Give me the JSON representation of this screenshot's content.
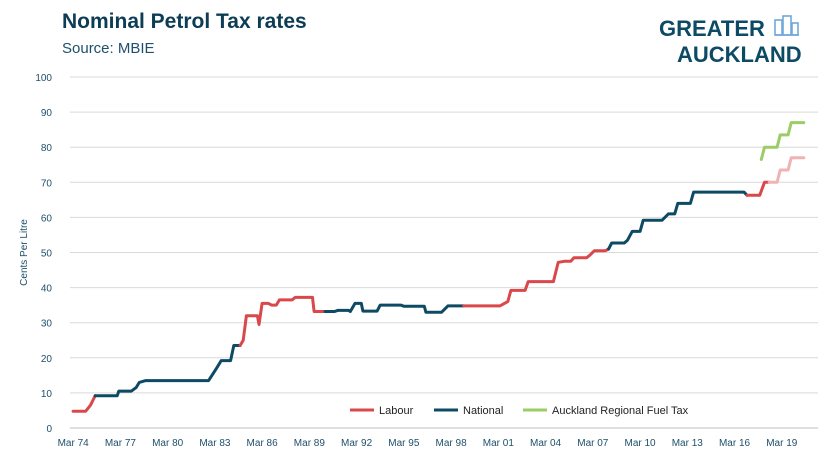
{
  "title": "Nominal Petrol Tax rates",
  "subtitle": "Source: MBIE",
  "logo_text": [
    "GREATER",
    "AUCKLAND"
  ],
  "colors": {
    "title": "#0d3c55",
    "labour": "#d9484a",
    "national": "#0d4a63",
    "labour_faded": "#f0b3b4",
    "rft": "#9ccc65",
    "grid": "#d9d9d9",
    "axis_text": "#1e4f6b",
    "logo": "#0d4a63"
  },
  "chart_data": {
    "type": "line",
    "ylabel": "Cents Per Litre",
    "xlabel": "",
    "ylim": [
      0,
      100
    ],
    "yticks": [
      0,
      10,
      20,
      30,
      40,
      50,
      60,
      70,
      80,
      90,
      100
    ],
    "xlim": [
      1974.0,
      2021.5
    ],
    "xticks": [
      {
        "label": "Mar 74",
        "x": 1974.2
      },
      {
        "label": "Mar 77",
        "x": 1977.2
      },
      {
        "label": "Mar 80",
        "x": 1980.2
      },
      {
        "label": "Mar 83",
        "x": 1983.2
      },
      {
        "label": "Mar 86",
        "x": 1986.2
      },
      {
        "label": "Mar 89",
        "x": 1989.2
      },
      {
        "label": "Mar 92",
        "x": 1992.2
      },
      {
        "label": "Mar 95",
        "x": 1995.2
      },
      {
        "label": "Mar 98",
        "x": 1998.2
      },
      {
        "label": "Mar 01",
        "x": 2001.2
      },
      {
        "label": "Mar 04",
        "x": 2004.2
      },
      {
        "label": "Mar 07",
        "x": 2007.2
      },
      {
        "label": "Mar 10",
        "x": 2010.2
      },
      {
        "label": "Mar 13",
        "x": 2013.2
      },
      {
        "label": "Mar 16",
        "x": 2016.2
      },
      {
        "label": "Mar 19",
        "x": 2019.2
      }
    ],
    "legend_position": "bottom",
    "legend": [
      {
        "name": "Labour",
        "color_key": "labour"
      },
      {
        "name": "National",
        "color_key": "national"
      },
      {
        "name": "Auckland Regional Fuel Tax",
        "color_key": "rft"
      }
    ],
    "series": [
      {
        "name": "Labour",
        "color_key": "labour",
        "points": [
          [
            1974.2,
            4.8
          ],
          [
            1975.0,
            4.8
          ],
          [
            1975.3,
            6.5
          ],
          [
            1975.6,
            9.2
          ]
        ]
      },
      {
        "name": "National",
        "color_key": "national",
        "points": [
          [
            1975.6,
            9.2
          ],
          [
            1977.0,
            9.2
          ],
          [
            1977.1,
            10.5
          ],
          [
            1977.9,
            10.5
          ],
          [
            1978.2,
            11.5
          ],
          [
            1978.4,
            13.0
          ],
          [
            1978.8,
            13.5
          ],
          [
            1980.0,
            13.5
          ],
          [
            1982.0,
            13.5
          ],
          [
            1982.8,
            13.5
          ],
          [
            1983.3,
            17.0
          ],
          [
            1983.6,
            19.2
          ],
          [
            1984.2,
            19.2
          ],
          [
            1984.4,
            23.5
          ],
          [
            1984.8,
            23.5
          ]
        ]
      },
      {
        "name": "Labour",
        "color_key": "labour",
        "points": [
          [
            1984.8,
            23.5
          ],
          [
            1985.0,
            25.0
          ],
          [
            1985.2,
            32.0
          ],
          [
            1985.9,
            32.0
          ],
          [
            1986.0,
            29.5
          ],
          [
            1986.2,
            35.5
          ],
          [
            1986.6,
            35.5
          ],
          [
            1986.8,
            35.0
          ],
          [
            1987.1,
            35.0
          ],
          [
            1987.3,
            36.5
          ],
          [
            1988.1,
            36.5
          ],
          [
            1988.3,
            37.2
          ],
          [
            1989.4,
            37.2
          ],
          [
            1989.5,
            33.2
          ],
          [
            1990.2,
            33.2
          ]
        ]
      },
      {
        "name": "National",
        "color_key": "national",
        "points": [
          [
            1990.2,
            33.2
          ],
          [
            1990.8,
            33.2
          ],
          [
            1991.0,
            33.5
          ],
          [
            1991.7,
            33.5
          ],
          [
            1991.8,
            33.2
          ],
          [
            1992.1,
            35.5
          ],
          [
            1992.5,
            35.5
          ],
          [
            1992.6,
            33.3
          ],
          [
            1993.5,
            33.3
          ],
          [
            1993.7,
            35.0
          ],
          [
            1995.0,
            35.0
          ],
          [
            1995.2,
            34.7
          ],
          [
            1996.5,
            34.7
          ],
          [
            1996.6,
            33.0
          ],
          [
            1997.6,
            33.0
          ],
          [
            1998.0,
            34.8
          ],
          [
            1999.0,
            34.8
          ]
        ]
      },
      {
        "name": "Labour",
        "color_key": "labour",
        "points": [
          [
            1999.0,
            34.8
          ],
          [
            2001.3,
            34.8
          ],
          [
            2001.8,
            36.0
          ],
          [
            2002.0,
            39.2
          ],
          [
            2002.9,
            39.2
          ],
          [
            2003.1,
            41.7
          ],
          [
            2004.7,
            41.7
          ],
          [
            2005.0,
            47.2
          ],
          [
            2005.4,
            47.5
          ],
          [
            2005.8,
            47.5
          ],
          [
            2006.0,
            48.5
          ],
          [
            2006.8,
            48.5
          ],
          [
            2007.0,
            49.2
          ],
          [
            2007.3,
            50.5
          ],
          [
            2008.0,
            50.5
          ],
          [
            2008.2,
            51.0
          ]
        ]
      },
      {
        "name": "National",
        "color_key": "national",
        "points": [
          [
            2008.2,
            51.0
          ],
          [
            2008.4,
            52.7
          ],
          [
            2009.2,
            52.7
          ],
          [
            2009.4,
            53.5
          ],
          [
            2009.7,
            56.0
          ],
          [
            2010.2,
            56.0
          ],
          [
            2010.4,
            59.2
          ],
          [
            2011.6,
            59.2
          ],
          [
            2012.0,
            61.0
          ],
          [
            2012.4,
            61.0
          ],
          [
            2012.6,
            64.0
          ],
          [
            2013.4,
            64.0
          ],
          [
            2013.6,
            67.2
          ],
          [
            2016.8,
            67.2
          ],
          [
            2017.0,
            66.3
          ]
        ]
      },
      {
        "name": "Labour",
        "color_key": "labour",
        "points": [
          [
            2017.0,
            66.3
          ],
          [
            2017.8,
            66.3
          ],
          [
            2018.1,
            70.0
          ],
          [
            2018.4,
            70.0
          ]
        ]
      },
      {
        "name": "Labour",
        "color_key": "labour_faded",
        "points": [
          [
            2018.4,
            70.0
          ],
          [
            2018.9,
            70.0
          ],
          [
            2019.1,
            73.5
          ],
          [
            2019.6,
            73.5
          ],
          [
            2019.8,
            77.0
          ],
          [
            2020.6,
            77.0
          ]
        ]
      },
      {
        "name": "Auckland Regional Fuel Tax",
        "color_key": "rft",
        "points": [
          [
            2017.9,
            76.5
          ],
          [
            2018.1,
            80.0
          ],
          [
            2018.9,
            80.0
          ],
          [
            2019.1,
            83.5
          ],
          [
            2019.6,
            83.5
          ],
          [
            2019.8,
            87.0
          ],
          [
            2020.6,
            87.0
          ]
        ]
      }
    ]
  }
}
